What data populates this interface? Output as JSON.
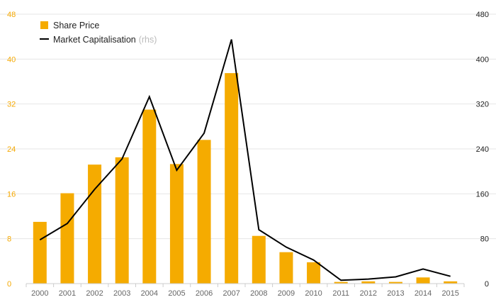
{
  "chart_data": {
    "type": "bar+line",
    "categories": [
      "2000",
      "2001",
      "2002",
      "2003",
      "2004",
      "2005",
      "2006",
      "2007",
      "2008",
      "2009",
      "2010",
      "2011",
      "2012",
      "2013",
      "2014",
      "2015"
    ],
    "series": [
      {
        "name": "Share Price",
        "type": "bar",
        "axis": "left",
        "values": [
          11.0,
          16.1,
          21.2,
          22.5,
          31.0,
          21.3,
          25.6,
          37.5,
          8.5,
          5.6,
          3.8,
          0.3,
          0.4,
          0.3,
          1.1,
          0.4
        ]
      },
      {
        "name": "Market Capitalisation",
        "type": "line",
        "axis": "right",
        "values": [
          78,
          107,
          168,
          222,
          333,
          202,
          268,
          435,
          96,
          65,
          42,
          6,
          8,
          12,
          26,
          13
        ]
      }
    ],
    "legend": {
      "bar_label": "Share Price",
      "line_label": "Market Capitalisation",
      "line_suffix": "(rhs)",
      "position": "top-left"
    },
    "y_left": {
      "ylim": [
        0,
        48
      ],
      "ticks": [
        "0",
        "8",
        "16",
        "24",
        "32",
        "40",
        "48"
      ]
    },
    "y_right": {
      "ylim": [
        0,
        480
      ],
      "ticks": [
        "0",
        "80",
        "160",
        "240",
        "320",
        "400",
        "480"
      ]
    },
    "grid": true,
    "colors": {
      "bar": "#f5ab00",
      "line": "#000000",
      "grid": "#e6e6e6",
      "left_tick": "#f5a800"
    }
  }
}
